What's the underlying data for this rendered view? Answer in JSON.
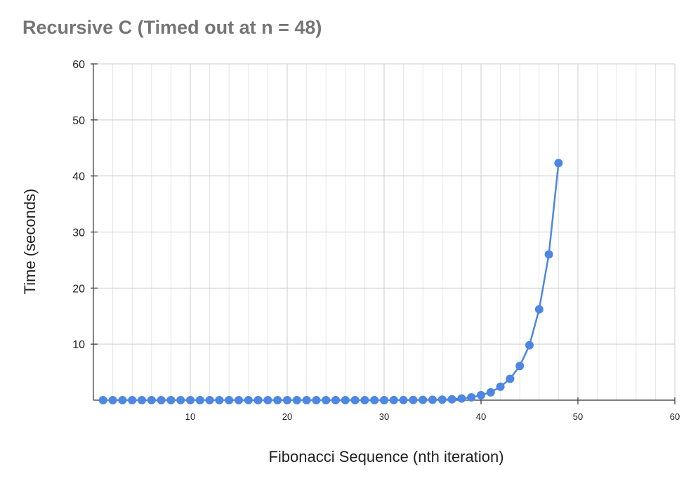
{
  "chart_data": {
    "type": "line",
    "title": "Recursive C (Timed out at n = 48)",
    "xlabel": "Fibonacci Sequence (nth iteration)",
    "ylabel": "Time (seconds)",
    "xlim": [
      0,
      60
    ],
    "ylim": [
      0,
      60
    ],
    "x_ticks": [
      10,
      20,
      30,
      40,
      50,
      60
    ],
    "y_ticks": [
      10,
      20,
      30,
      40,
      50,
      60
    ],
    "grid": true,
    "legend": "none",
    "colors": {
      "series": "#4e86e4",
      "grid_major": "#cccccc",
      "grid_minor": "#e6e6e6",
      "axis": "#333333",
      "title": "#757575"
    },
    "series": [
      {
        "x": [
          1,
          2,
          3,
          4,
          5,
          6,
          7,
          8,
          9,
          10,
          11,
          12,
          13,
          14,
          15,
          16,
          17,
          18,
          19,
          20,
          21,
          22,
          23,
          24,
          25,
          26,
          27,
          28,
          29,
          30,
          31,
          32,
          33,
          34,
          35,
          36,
          37,
          38,
          39,
          40,
          41,
          42,
          43,
          44,
          45,
          46,
          47,
          48
        ],
        "values": [
          0,
          0,
          0,
          0,
          0,
          0,
          0,
          0,
          0,
          0,
          0,
          0,
          0,
          0,
          0,
          0,
          0,
          0,
          0,
          0,
          0,
          0,
          0,
          0,
          0,
          0,
          0,
          0,
          0,
          0,
          0.01,
          0.02,
          0.03,
          0.04,
          0.06,
          0.1,
          0.15,
          0.3,
          0.5,
          0.9,
          1.4,
          2.4,
          3.8,
          6.1,
          9.8,
          16.2,
          26.0,
          42.3
        ]
      }
    ]
  }
}
